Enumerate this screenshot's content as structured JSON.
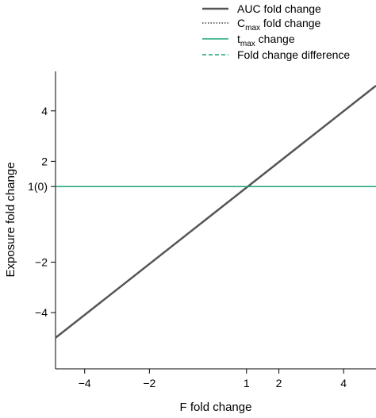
{
  "chart_data": {
    "type": "line",
    "xlabel": "F fold change",
    "ylabel": "Exposure fold change",
    "xlim": [
      -4.9,
      5.0
    ],
    "ylim": [
      -5.6,
      5.0
    ],
    "x_ticks": [
      {
        "value": -4,
        "label": "−4"
      },
      {
        "value": -2,
        "label": "−2"
      },
      {
        "value": 1,
        "label": "1"
      },
      {
        "value": 2,
        "label": "2"
      },
      {
        "value": 4,
        "label": "4"
      }
    ],
    "y_ticks": [
      {
        "value": 4,
        "label": "4"
      },
      {
        "value": 2,
        "label": "2"
      },
      {
        "value": 1,
        "label": "1(0)"
      },
      {
        "value": -2,
        "label": "−2"
      },
      {
        "value": -4,
        "label": "−4"
      }
    ],
    "grid": false,
    "legend_position": "top-right",
    "series": [
      {
        "key": "auc",
        "name": "AUC fold change",
        "color": "#555555",
        "style": "solid",
        "x": [
          -4.9,
          5.0
        ],
        "y": [
          -5.0,
          5.0
        ]
      },
      {
        "key": "cmax",
        "name_main": "C",
        "name_sub": "max",
        "name_rest": " fold change",
        "color": "#444444",
        "style": "dotted",
        "x": [
          -4.9,
          5.0
        ],
        "y": [
          1.0,
          1.0
        ]
      },
      {
        "key": "tmax",
        "name_main": "t",
        "name_sub": "max",
        "name_rest": " change",
        "color": "#1aa37a",
        "style": "solid",
        "x": [
          -4.9,
          5.0
        ],
        "y": [
          1.0,
          1.0
        ]
      },
      {
        "key": "diff",
        "name": "Fold change difference",
        "color": "#1aa37a",
        "style": "dashed",
        "x": [
          -4.9,
          5.0
        ],
        "y": [
          1.0,
          1.0
        ]
      }
    ]
  }
}
